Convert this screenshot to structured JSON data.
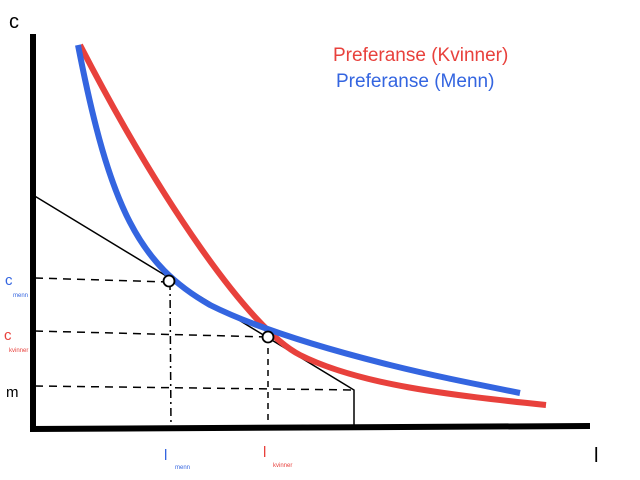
{
  "axes": {
    "y_label": "c",
    "x_label": "l"
  },
  "legend": {
    "women": "Preferanse (Kvinner)",
    "men": "Preferanse (Menn)"
  },
  "labels": {
    "c_main": "c",
    "c_men_sub": "menn",
    "c_women_main": "c",
    "c_women_sub": "kvinner",
    "m": "m",
    "l_men_main": "l",
    "l_men_sub": "menn",
    "l_women_main": "l",
    "l_women_sub": "kvinner"
  },
  "colors": {
    "women": "#e8413c",
    "men": "#3465e0",
    "axis": "#000000"
  }
}
